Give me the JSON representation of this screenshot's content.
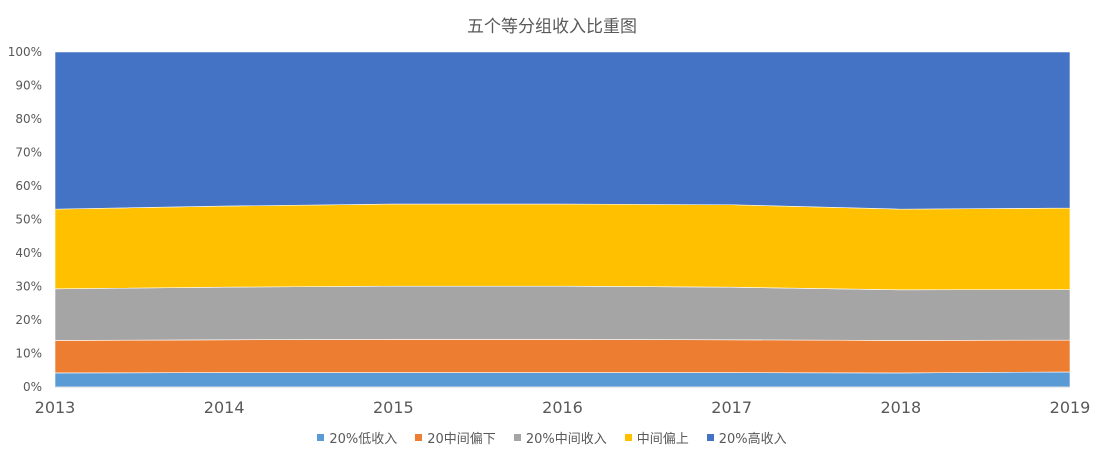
{
  "chart_data": {
    "type": "area",
    "stacked": true,
    "normalized": true,
    "title": "五个等分组收入比重图",
    "x": [
      "2013",
      "2014",
      "2015",
      "2016",
      "2017",
      "2018",
      "2019"
    ],
    "y_ticks": [
      "0%",
      "10%",
      "20%",
      "30%",
      "40%",
      "50%",
      "60%",
      "70%",
      "80%",
      "90%",
      "100%"
    ],
    "ylim": [
      0,
      1
    ],
    "grid": false,
    "legend_position": "bottom",
    "series": [
      {
        "name": "20%低收入",
        "color": "#5b9bd5",
        "values": [
          0.042,
          0.043,
          0.043,
          0.043,
          0.043,
          0.042,
          0.045
        ]
      },
      {
        "name": "20中间偏下",
        "color": "#ed7d31",
        "values": [
          0.097,
          0.098,
          0.099,
          0.099,
          0.098,
          0.097,
          0.095
        ]
      },
      {
        "name": "20%中间收入",
        "color": "#a5a5a5",
        "values": [
          0.154,
          0.157,
          0.159,
          0.159,
          0.157,
          0.151,
          0.151
        ]
      },
      {
        "name": "中间偏上",
        "color": "#ffc000",
        "values": [
          0.238,
          0.242,
          0.245,
          0.245,
          0.246,
          0.241,
          0.243
        ]
      },
      {
        "name": "20%高收入",
        "color": "#4472c4",
        "values": [
          0.469,
          0.46,
          0.454,
          0.454,
          0.456,
          0.469,
          0.466
        ]
      }
    ]
  }
}
